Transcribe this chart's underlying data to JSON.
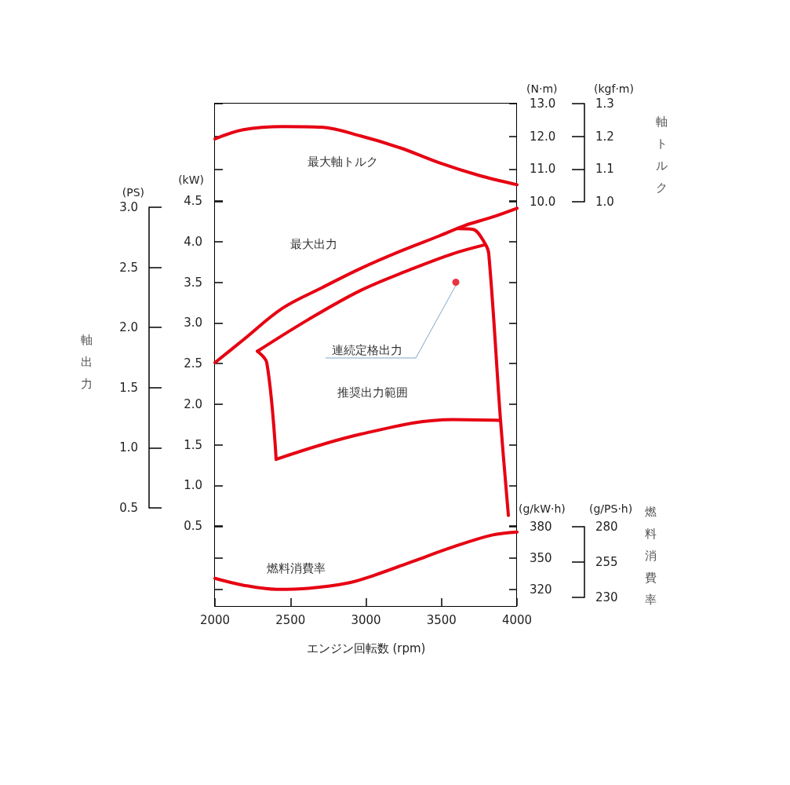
{
  "chart_data": [
    {
      "type": "line",
      "ylabel": "(N·m)",
      "y2label": "(kgf·m)",
      "annotations": [
        "軸トルク"
      ],
      "xlim": [
        2000,
        4000
      ],
      "tick_labels": "y",
      "ylim": [
        10,
        13
      ],
      "yticks": [
        {
          "value": 10,
          "label": "10.0"
        },
        {
          "value": 11,
          "label": "11.0"
        },
        {
          "value": 12,
          "label": "12.0"
        },
        {
          "value": 13,
          "label": "13.0"
        }
      ],
      "y2lim": [
        1,
        1.3
      ],
      "y2ticks": [
        {
          "value": 1,
          "label": "1.0"
        },
        1.1,
        1.2,
        1.3
      ],
      "grid": false,
      "legend": false,
      "marker": "none",
      "line_style": "solid",
      "series": [
        {
          "name": "最大軸トルク",
          "axis": "y",
          "color": "#e60012",
          "x": [
            2000,
            2187,
            2447,
            2706,
            2966,
            3226,
            3486,
            3745,
            4000
          ],
          "values": [
            11.92,
            12.2,
            12.3,
            12.28,
            12.01,
            11.65,
            11.19,
            10.81,
            10.52
          ]
        }
      ]
    },
    {
      "type": "line",
      "ylabel": "(kW)",
      "y2label": "(PS)",
      "annotations": [
        "軸出力"
      ],
      "xlim": [
        2000,
        4000
      ],
      "tick_labels": "y",
      "ylim": [
        0.5,
        4.5
      ],
      "yticks": [
        0.5,
        {
          "value": 1,
          "label": "1.0"
        },
        1.5,
        {
          "value": 2,
          "label": "2.0"
        },
        2.5,
        {
          "value": 3,
          "label": "3.0"
        },
        3.5,
        {
          "value": 4,
          "label": "4.0"
        },
        4.5
      ],
      "y2lim": [
        0.5,
        3
      ],
      "y2ticks": [
        0.5,
        {
          "value": 1,
          "label": "1.0"
        },
        1.5,
        {
          "value": 2,
          "label": "2.0"
        },
        2.5,
        {
          "value": 3,
          "label": "3.0"
        }
      ],
      "grid": false,
      "legend": false,
      "line_style": "solid",
      "series": [
        {
          "name": "最大出力",
          "color": "#e60012",
          "x": [
            2000,
            2187,
            2447,
            2706,
            2966,
            3226,
            3486,
            3657,
            3834,
            4000
          ],
          "values": [
            2.51,
            2.79,
            3.18,
            3.43,
            3.67,
            3.88,
            4.07,
            4.2,
            4.3,
            4.41
          ]
        },
        {
          "color": "#e60012",
          "x": [
            2281,
            2618,
            2966,
            3314,
            3574,
            3787
          ],
          "values": [
            2.65,
            3.04,
            3.4,
            3.67,
            3.85,
            3.96
          ]
        },
        {
          "color": "#e60012",
          "x": [
            2281,
            2343,
            2405
          ],
          "values": [
            2.65,
            2.51,
            1.32
          ]
        },
        {
          "name": "推奨出力範囲",
          "color": "#e60012",
          "x": [
            2405,
            2966,
            3574,
            3891
          ],
          "values": [
            1.32,
            1.63,
            1.81,
            1.8
          ]
        },
        {
          "color": "#e60012",
          "x": [
            3605,
            3709,
            3787,
            3813,
            3891,
            3943
          ],
          "values": [
            4.16,
            4.15,
            3.98,
            3.85,
            1.8,
            0.63
          ]
        },
        {
          "name": "連続定格出力",
          "type": "scatter",
          "marker": "circle",
          "color": "#e60012",
          "x": [
            3595
          ],
          "values": [
            3.5
          ]
        }
      ]
    },
    {
      "type": "line",
      "xlabel": "エンジン回転数 (rpm)",
      "ylabel": "(g/kW·h)",
      "y2label": "(g/PS·h)",
      "annotations": [
        "燃料消費率"
      ],
      "xlim": [
        2000,
        4000
      ],
      "xticks": [
        2000,
        2500,
        3000,
        3500,
        4000
      ],
      "ylim": [
        304,
        380
      ],
      "yticks": [
        320,
        350,
        380
      ],
      "y2lim": [
        230,
        280
      ],
      "y2ticks": [
        230,
        255,
        280
      ],
      "grid": false,
      "legend": false,
      "marker": "none",
      "line_style": "solid",
      "series": [
        {
          "name": "燃料消費率",
          "color": "#e60012",
          "x": [
            2000,
            2187,
            2410,
            2618,
            2878,
            3055,
            3314,
            3574,
            3834,
            4000
          ],
          "values": [
            330.5,
            324,
            320,
            321,
            326,
            333.5,
            347,
            360.5,
            372,
            375
          ]
        }
      ]
    }
  ]
}
